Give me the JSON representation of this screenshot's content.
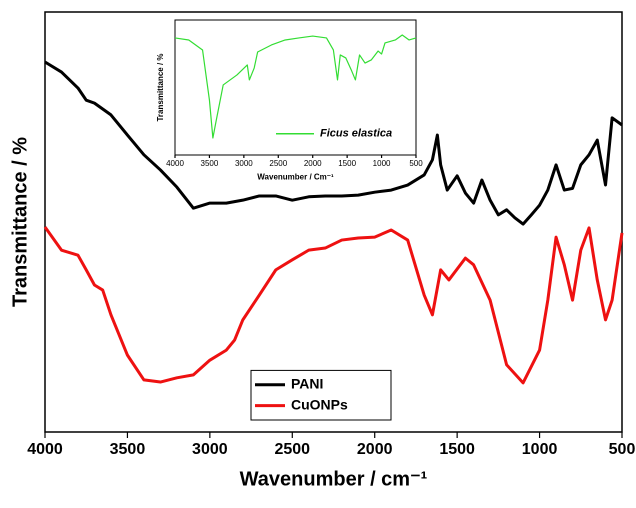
{
  "chart_data": [
    {
      "type": "line",
      "xlabel": "Wavenumber / cm⁻¹",
      "ylabel": "Transmittance / %",
      "xlim": [
        4000,
        500
      ],
      "ylim": [
        0,
        100
      ],
      "xticks": [
        4000,
        3500,
        3000,
        2500,
        2000,
        1500,
        1000,
        500
      ],
      "legend": "lower center",
      "series": [
        {
          "name": "PANI",
          "color": "#000000",
          "x": [
            4000,
            3900,
            3800,
            3750,
            3700,
            3600,
            3500,
            3400,
            3300,
            3200,
            3100,
            3000,
            2900,
            2800,
            2700,
            2600,
            2500,
            2400,
            2300,
            2200,
            2100,
            2000,
            1900,
            1800,
            1700,
            1650,
            1620,
            1600,
            1560,
            1500,
            1450,
            1400,
            1350,
            1300,
            1250,
            1200,
            1150,
            1100,
            1050,
            1000,
            950,
            900,
            850,
            800,
            750,
            700,
            650,
            600,
            560,
            500
          ],
          "values": [
            88.1,
            85.7,
            81.9,
            79,
            78.3,
            75.5,
            70.7,
            66,
            62.4,
            58.3,
            53.3,
            54.5,
            54.5,
            55.2,
            56.2,
            56.2,
            55.2,
            56,
            56.2,
            56.2,
            56.4,
            57.1,
            57.6,
            58.8,
            61.2,
            64.8,
            70.7,
            63.6,
            57.6,
            61,
            56.9,
            54.5,
            60,
            55.2,
            51.7,
            52.9,
            51,
            49.5,
            51.7,
            54,
            57.6,
            63.6,
            57.6,
            58,
            63.6,
            66,
            69.5,
            58.8,
            74.8,
            73.1
          ]
        },
        {
          "name": "CuONPs",
          "color": "#ee1111",
          "x": [
            4000,
            3900,
            3800,
            3750,
            3700,
            3650,
            3600,
            3500,
            3400,
            3300,
            3200,
            3100,
            3000,
            2900,
            2850,
            2800,
            2700,
            2600,
            2500,
            2400,
            2300,
            2200,
            2100,
            2000,
            1900,
            1800,
            1700,
            1650,
            1600,
            1550,
            1450,
            1400,
            1300,
            1200,
            1100,
            1000,
            950,
            900,
            850,
            800,
            750,
            700,
            650,
            600,
            560,
            500
          ],
          "values": [
            48.8,
            43.3,
            42.1,
            38.6,
            35,
            33.8,
            27.9,
            18.3,
            12.4,
            11.9,
            12.9,
            13.6,
            17.1,
            19.5,
            21.9,
            26.7,
            32.6,
            38.6,
            41,
            43.3,
            43.8,
            45.7,
            46.2,
            46.4,
            48.1,
            45.7,
            32.6,
            27.9,
            38.6,
            36.2,
            41.4,
            39.8,
            31.4,
            16,
            11.7,
            19.5,
            31.4,
            46.4,
            39.8,
            31.4,
            43.3,
            48.6,
            36.2,
            26.7,
            31.4,
            47.4
          ]
        }
      ]
    },
    {
      "type": "line",
      "xlabel": "Wavenumber / Cm⁻¹",
      "ylabel": "Transmittance / %",
      "xlim": [
        4000,
        500
      ],
      "ylim": [
        0,
        100
      ],
      "xticks": [
        4000,
        3500,
        3000,
        2500,
        2000,
        1500,
        1000,
        500
      ],
      "legend": "lower right",
      "series": [
        {
          "name": "Ficus elastica",
          "color": "#33dd33",
          "x": [
            4000,
            3800,
            3600,
            3500,
            3450,
            3400,
            3300,
            3100,
            2950,
            2920,
            2850,
            2800,
            2600,
            2400,
            2200,
            2000,
            1800,
            1700,
            1640,
            1600,
            1520,
            1440,
            1380,
            1320,
            1240,
            1150,
            1050,
            1000,
            950,
            800,
            700,
            600,
            500
          ],
          "values": [
            86.7,
            85.2,
            77.8,
            40.7,
            12.6,
            25.9,
            51.9,
            59.3,
            66.7,
            55.6,
            64.4,
            76.3,
            81.5,
            85.2,
            86.7,
            88.1,
            86.7,
            77.8,
            55.6,
            74.1,
            71.9,
            63,
            55.6,
            74.1,
            68.1,
            70.4,
            77,
            74.8,
            83,
            85.2,
            88.9,
            85.2,
            86.7
          ]
        }
      ]
    }
  ]
}
